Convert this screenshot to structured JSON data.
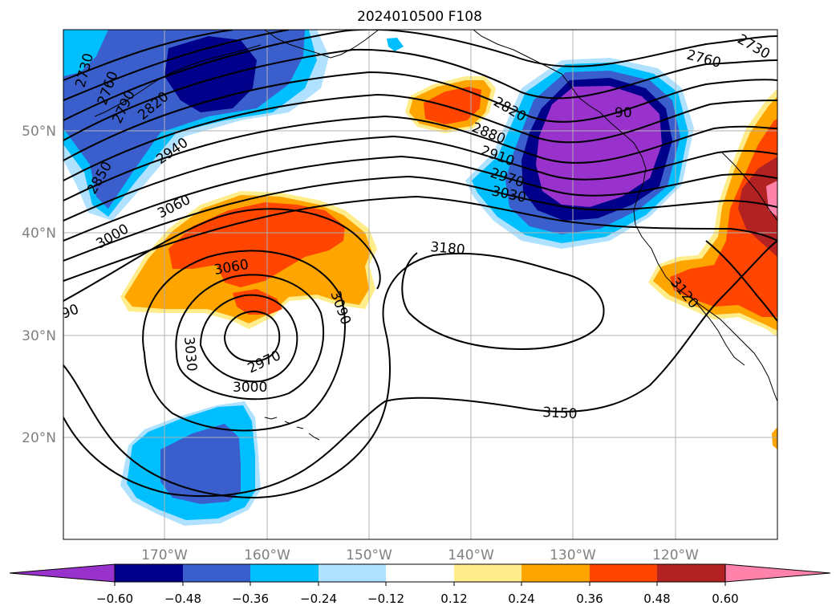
{
  "title": "2024010500 F108",
  "lat_labels": [
    "50°N",
    "40°N",
    "30°N",
    "20°N"
  ],
  "lon_labels": [
    "170°W",
    "160°W",
    "150°W",
    "140°W",
    "130°W",
    "120°W"
  ],
  "contour_labels": [
    "2730",
    "2760",
    "2790",
    "2820",
    "2850",
    "2940",
    "3000",
    "3060",
    "90",
    "3060",
    "3030",
    "2970",
    "3000",
    "3090",
    "3180",
    "3150",
    "2820",
    "2880",
    "2910",
    "2970",
    "3030",
    "90",
    "2760",
    "2730",
    "3120"
  ],
  "colorbar": {
    "ticks": [
      "−0.60",
      "−0.48",
      "−0.36",
      "−0.24",
      "−0.12",
      "0.12",
      "0.24",
      "0.36",
      "0.48",
      "0.60"
    ],
    "colors": [
      "#9932cc",
      "#00008b",
      "#3a5fcd",
      "#00bfff",
      "#b0e2ff",
      "#ffffff",
      "#ffec8b",
      "#ffa500",
      "#ff4500",
      "#b22222",
      "#ff82ab"
    ]
  }
}
